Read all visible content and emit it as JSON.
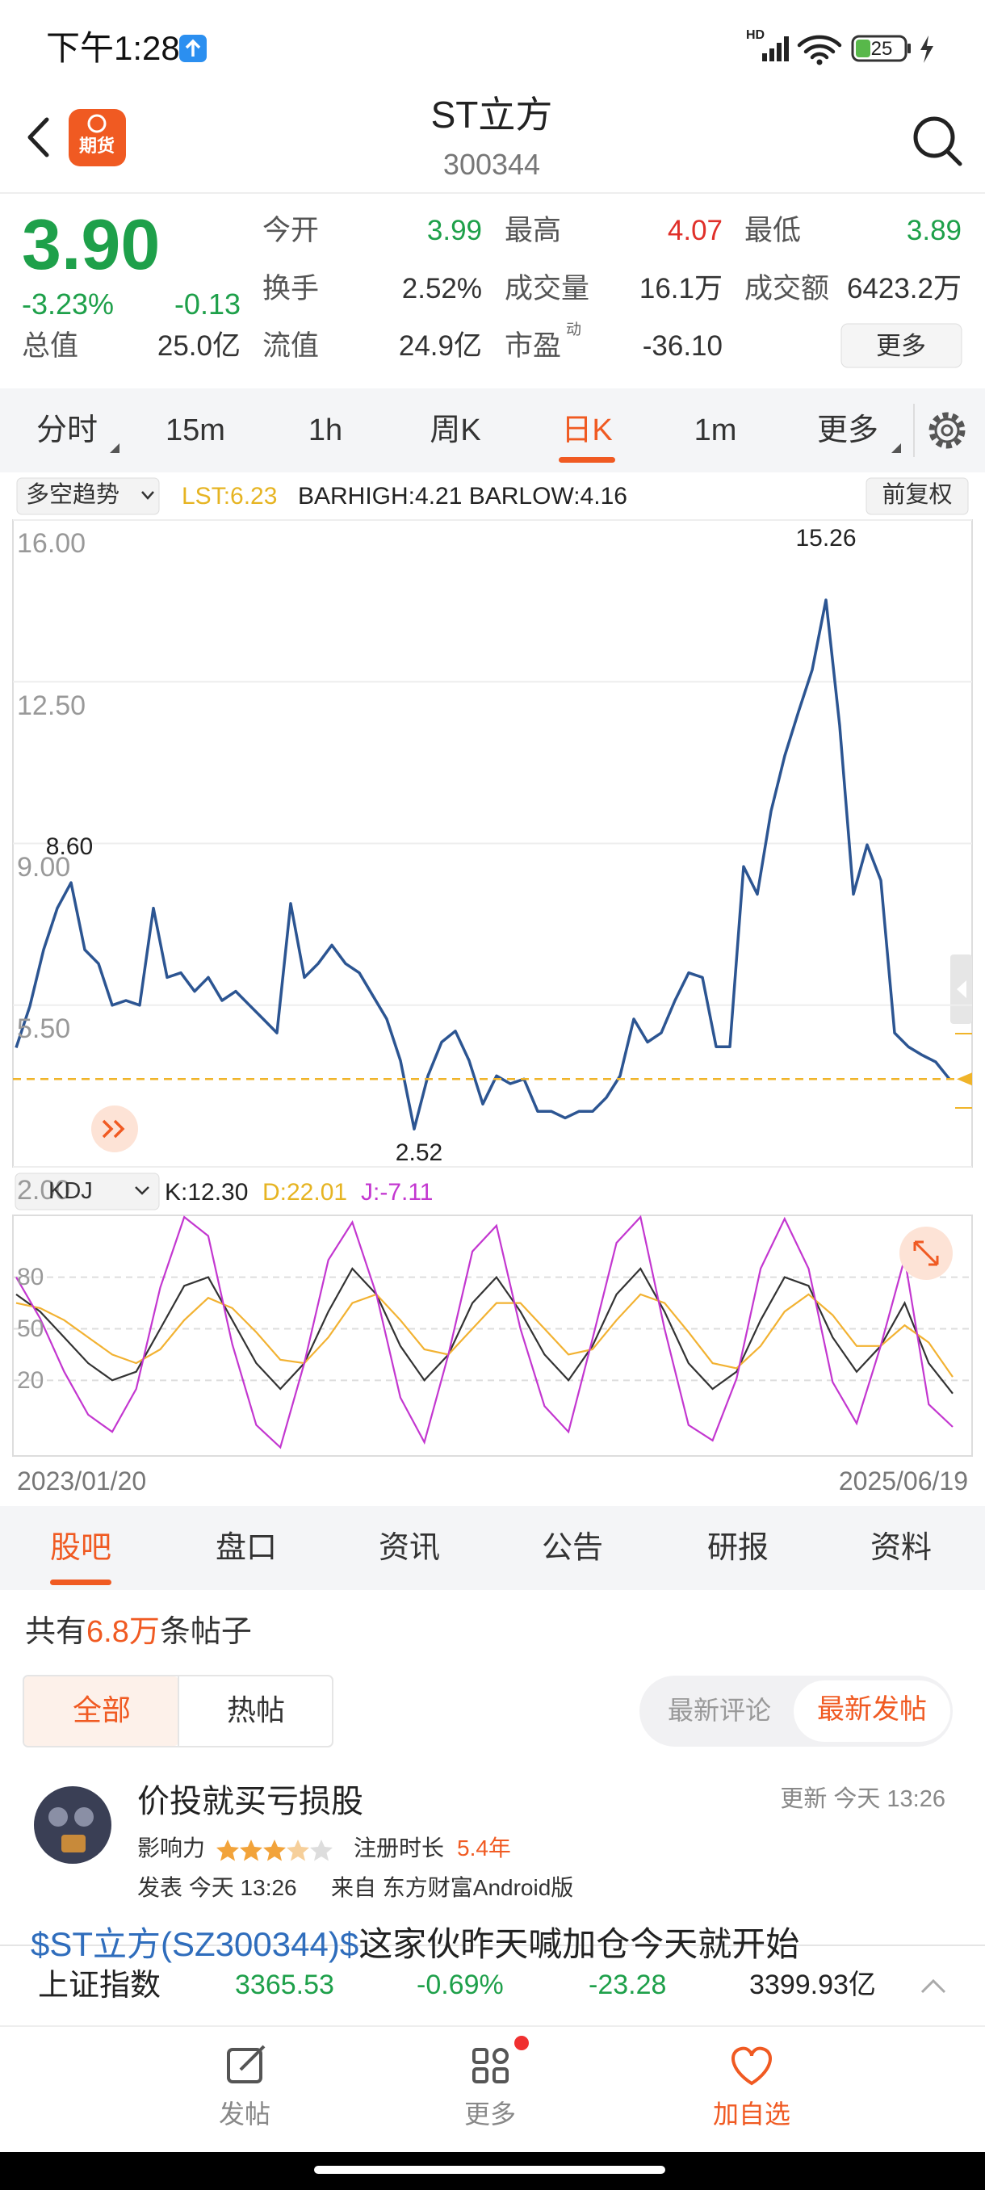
{
  "status_bar": {
    "time": "下午1:28",
    "network": "HD",
    "battery": "25"
  },
  "header": {
    "logo": "期货",
    "title": "ST立方",
    "code": "300344"
  },
  "quote": {
    "price": "3.90",
    "change_pct": "-3.23%",
    "change": "-0.13",
    "total_label": "总值",
    "total_value": "25.0亿",
    "fields": [
      {
        "label": "今开",
        "value": "3.99",
        "color": "#1ea04a"
      },
      {
        "label": "最高",
        "value": "4.07",
        "color": "#e0302a"
      },
      {
        "label": "最低",
        "value": "3.89",
        "color": "#1ea04a"
      },
      {
        "label": "换手",
        "value": "2.52%",
        "color": "#333333"
      },
      {
        "label": "成交量",
        "value": "16.1万",
        "color": "#333333"
      },
      {
        "label": "成交额",
        "value": "6423.2万",
        "color": "#333333"
      },
      {
        "label": "流值",
        "value": "24.9亿",
        "color": "#333333"
      },
      {
        "label": "市盈",
        "sup": "动",
        "value": "-36.10",
        "color": "#333333"
      }
    ],
    "more": "更多"
  },
  "period_tabs": [
    "分时",
    "15m",
    "1h",
    "周K",
    "日K",
    "1m",
    "更多"
  ],
  "indicator": {
    "name": "多空趋势",
    "lst": "LST:6.23",
    "bars": "BARHIGH:4.21 BARLOW:4.16",
    "adjust": "前复权"
  },
  "price_chart": {
    "color": "#2c5592",
    "ylim": [
      2,
      16
    ],
    "yticks": [
      {
        "value": 16,
        "label": "16.00"
      },
      {
        "value": 12.5,
        "label": "12.50"
      },
      {
        "value": 9,
        "label": "9.00"
      },
      {
        "value": 5.5,
        "label": "5.50"
      },
      {
        "value": 2,
        "label": "2.00"
      }
    ],
    "values": [
      4.58,
      5.48,
      6.7,
      7.6,
      8.15,
      6.7,
      6.4,
      5.5,
      5.6,
      5.5,
      7.6,
      6.1,
      6.2,
      5.8,
      6.1,
      5.6,
      5.8,
      5.5,
      5.2,
      4.9,
      7.7,
      6.1,
      6.4,
      6.8,
      6.4,
      6.2,
      5.7,
      5.2,
      4.3,
      2.82,
      3.97,
      4.7,
      4.94,
      4.3,
      3.36,
      3.97,
      3.8,
      3.9,
      3.2,
      3.2,
      3.06,
      3.2,
      3.2,
      3.5,
      3.97,
      5.2,
      4.7,
      4.9,
      5.6,
      6.2,
      6.1,
      4.6,
      4.6,
      8.5,
      7.9,
      9.7,
      10.9,
      11.85,
      12.76,
      14.27,
      11.55,
      7.9,
      8.97,
      8.2,
      4.9,
      4.6,
      4.42,
      4.27,
      3.9
    ],
    "high_label": "15.26",
    "left_high_label": "8.60",
    "low_label": "2.52"
  },
  "kdj": {
    "name": "KDJ",
    "k_label": "K:12.30",
    "d_label": "D:22.01",
    "j_label": "J:-7.11",
    "ylim": [
      -24,
      116
    ],
    "yticks": [
      80,
      50,
      20
    ],
    "series": [
      {
        "color": "#333333",
        "values": [
          70,
          60,
          45,
          30,
          20,
          25,
          50,
          75,
          80,
          55,
          30,
          15,
          30,
          60,
          85,
          70,
          40,
          20,
          35,
          65,
          80,
          60,
          35,
          20,
          40,
          70,
          85,
          60,
          30,
          15,
          25,
          55,
          80,
          75,
          45,
          25,
          40,
          65,
          30,
          12.3
        ]
      },
      {
        "color": "#f2b232",
        "values": [
          65,
          62,
          55,
          45,
          35,
          30,
          38,
          55,
          68,
          62,
          48,
          32,
          30,
          45,
          65,
          70,
          55,
          38,
          35,
          50,
          65,
          65,
          50,
          35,
          38,
          55,
          70,
          65,
          48,
          30,
          27,
          40,
          60,
          70,
          58,
          40,
          40,
          52,
          42,
          22.01
        ]
      },
      {
        "color": "#c337d0",
        "values": [
          80,
          56,
          25,
          0,
          -10,
          15,
          74,
          115,
          104,
          41,
          -6,
          -19,
          30,
          90,
          112,
          70,
          10,
          -16,
          35,
          95,
          110,
          50,
          5,
          -10,
          44,
          100,
          115,
          50,
          -6,
          -15,
          21,
          85,
          114,
          85,
          19,
          -5,
          40,
          91,
          6,
          -7.11
        ]
      }
    ]
  },
  "date_range": {
    "start": "2023/01/20",
    "end": "2025/06/19"
  },
  "section_tabs": [
    "股吧",
    "盘口",
    "资讯",
    "公告",
    "研报",
    "资料"
  ],
  "posts_count": {
    "prefix": "共有",
    "count": "6.8万",
    "suffix": "条帖子"
  },
  "filters": [
    "全部",
    "热帖"
  ],
  "sort": [
    "最新评论",
    "最新发帖"
  ],
  "post": {
    "author": "价投就买亏损股",
    "updated": "更新 今天 13:26",
    "influence": "影响力",
    "reg_label": "注册时长",
    "reg_value": "5.4年",
    "posted": "发表 今天 13:26",
    "source": "来自 东方财富Android版",
    "content_link": "$ST立方(SZ300344)$",
    "content_text": "这家伙昨天喊加仓今天就开始"
  },
  "index_bar": {
    "name": "上证指数",
    "value": "3365.53",
    "pct": "-0.69%",
    "change": "-23.28",
    "turnover": "3399.93亿"
  },
  "nav": [
    "发帖",
    "更多",
    "加自选"
  ]
}
